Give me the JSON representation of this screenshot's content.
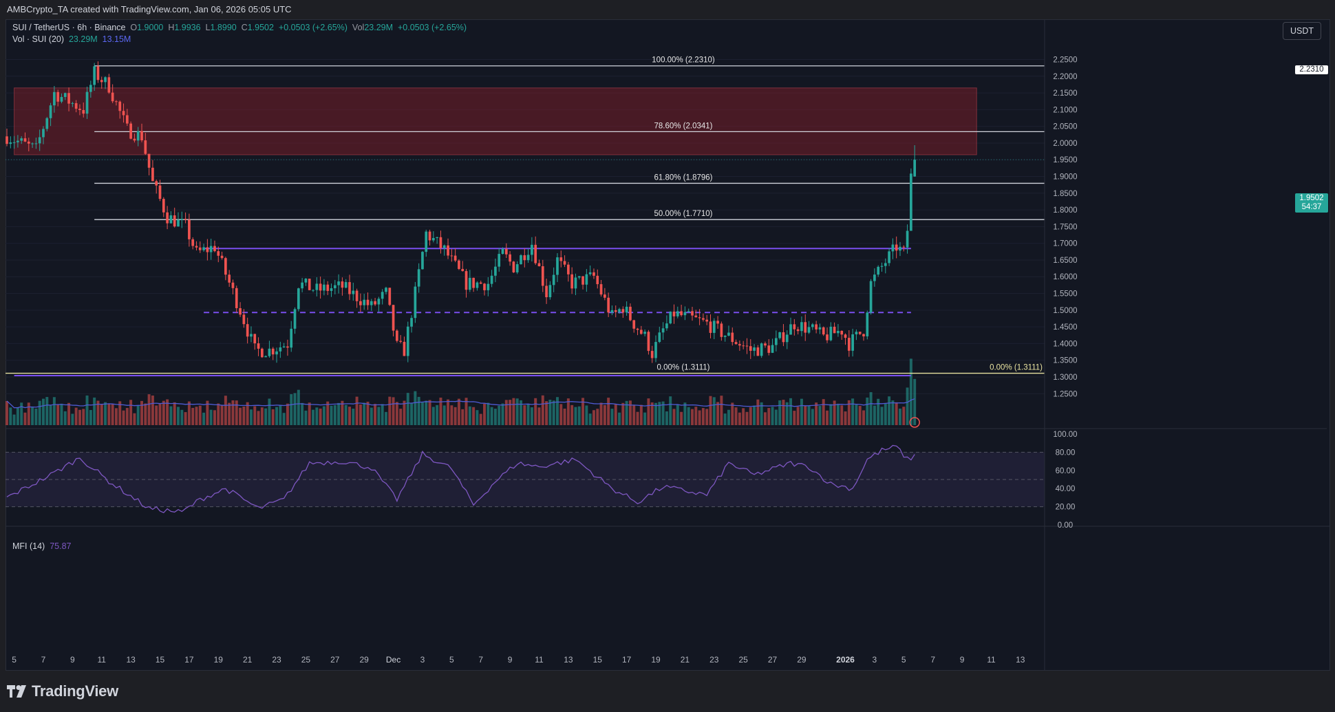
{
  "header": {
    "attribution": "AMBCrypto_TA created with TradingView.com, Jan 06, 2026 05:05 UTC"
  },
  "legend": {
    "symbol": "SUI / TetherUS · 6h · Binance",
    "o_label": "O",
    "o": "1.9000",
    "h_label": "H",
    "h": "1.9936",
    "l_label": "L",
    "l": "1.8990",
    "c_label": "C",
    "c": "1.9502",
    "change": "+0.0503 (+2.65%)",
    "vol_label": "Vol",
    "vol": "23.29M",
    "vol_change": "+0.0503 (+2.65%)",
    "vol_indicator": "Vol · SUI (20)",
    "vol_value": "23.29M",
    "vol_ma_value": "13.15M",
    "mfi_indicator": "MFI (14)",
    "mfi_value": "75.87"
  },
  "currency_button": "USDT",
  "last_price": {
    "price": "1.9502",
    "countdown": "54:37"
  },
  "brand": "TradingView",
  "colors": {
    "up": "#26a69a",
    "down": "#ef5350",
    "zone": "#8a1f2b",
    "level_line": "#d1d4dc",
    "range_line": "#7b4ff0",
    "base_line": "#e9e3a0",
    "vol_ma": "#4f5bd5",
    "mfi": "#7e57c2",
    "background": "#131722"
  },
  "chart_data": [
    {
      "type": "candlestick",
      "title": "SUI / TetherUS · 6h · Binance",
      "y_axis": {
        "ylim": [
          1.197,
          2.284
        ],
        "ticks": [
          "2.2500",
          "2.2000",
          "2.1500",
          "2.1000",
          "2.0500",
          "2.0000",
          "1.9500",
          "1.9000",
          "1.8500",
          "1.8000",
          "1.7500",
          "1.7000",
          "1.6500",
          "1.6000",
          "1.5500",
          "1.5000",
          "1.4500",
          "1.4000",
          "1.3500",
          "1.3000",
          "1.2500"
        ]
      },
      "x_axis": {
        "range": [
          "2025-11-04T12:00",
          "2026-01-14"
        ],
        "ticks": [
          {
            "date": "2025-11-05",
            "label": "5"
          },
          {
            "date": "2025-11-07",
            "label": "7"
          },
          {
            "date": "2025-11-09",
            "label": "9"
          },
          {
            "date": "2025-11-11",
            "label": "11"
          },
          {
            "date": "2025-11-13",
            "label": "13"
          },
          {
            "date": "2025-11-15",
            "label": "15"
          },
          {
            "date": "2025-11-17",
            "label": "17"
          },
          {
            "date": "2025-11-19",
            "label": "19"
          },
          {
            "date": "2025-11-21",
            "label": "21"
          },
          {
            "date": "2025-11-23",
            "label": "23"
          },
          {
            "date": "2025-11-25",
            "label": "25"
          },
          {
            "date": "2025-11-27",
            "label": "27"
          },
          {
            "date": "2025-11-29",
            "label": "29"
          },
          {
            "date": "2025-12-01",
            "label": "Dec"
          },
          {
            "date": "2025-12-03",
            "label": "3"
          },
          {
            "date": "2025-12-05",
            "label": "5"
          },
          {
            "date": "2025-12-07",
            "label": "7"
          },
          {
            "date": "2025-12-09",
            "label": "9"
          },
          {
            "date": "2025-12-11",
            "label": "11"
          },
          {
            "date": "2025-12-13",
            "label": "13"
          },
          {
            "date": "2025-12-15",
            "label": "15"
          },
          {
            "date": "2025-12-17",
            "label": "17"
          },
          {
            "date": "2025-12-19",
            "label": "19"
          },
          {
            "date": "2025-12-21",
            "label": "21"
          },
          {
            "date": "2025-12-23",
            "label": "23"
          },
          {
            "date": "2025-12-25",
            "label": "25"
          },
          {
            "date": "2025-12-27",
            "label": "27"
          },
          {
            "date": "2025-12-29",
            "label": "29"
          },
          {
            "date": "2026-01-01",
            "label": "2026"
          },
          {
            "date": "2026-01-03",
            "label": "3"
          },
          {
            "date": "2026-01-05",
            "label": "5"
          },
          {
            "date": "2026-01-07",
            "label": "7"
          },
          {
            "date": "2026-01-09",
            "label": "9"
          },
          {
            "date": "2026-01-11",
            "label": "11"
          },
          {
            "date": "2026-01-13",
            "label": "13"
          }
        ]
      },
      "key_points": [
        {
          "date": "2025-11-04T12:00",
          "close": 2.02
        },
        {
          "date": "2025-11-06T12:00",
          "close": 1.98
        },
        {
          "date": "2025-11-07T18:00",
          "close": 2.15
        },
        {
          "date": "2025-11-09T18:00",
          "close": 2.1
        },
        {
          "date": "2025-11-10T12:00",
          "close": 2.21
        },
        {
          "date": "2025-11-11T12:00",
          "close": 2.17
        },
        {
          "date": "2025-11-12T18:00",
          "close": 2.04
        },
        {
          "date": "2025-11-13T18:00",
          "close": 2.02
        },
        {
          "date": "2025-11-14T12:00",
          "close": 1.88
        },
        {
          "date": "2025-11-15T12:00",
          "close": 1.78
        },
        {
          "date": "2025-11-16T18:00",
          "close": 1.75
        },
        {
          "date": "2025-11-17T12:00",
          "close": 1.67
        },
        {
          "date": "2025-11-18T18:00",
          "close": 1.69
        },
        {
          "date": "2025-11-20T12:00",
          "close": 1.5
        },
        {
          "date": "2025-11-21T12:00",
          "close": 1.38
        },
        {
          "date": "2025-11-22T12:00",
          "close": 1.38
        },
        {
          "date": "2025-11-23T18:00",
          "close": 1.4
        },
        {
          "date": "2025-11-24T12:00",
          "close": 1.58
        },
        {
          "date": "2025-11-25T18:00",
          "close": 1.56
        },
        {
          "date": "2025-11-27T12:00",
          "close": 1.57
        },
        {
          "date": "2025-11-29T12:00",
          "close": 1.51
        },
        {
          "date": "2025-11-30T12:00",
          "close": 1.55
        },
        {
          "date": "2025-12-01T06:00",
          "close": 1.39
        },
        {
          "date": "2025-12-01T18:00",
          "close": 1.38
        },
        {
          "date": "2025-12-02T12:00",
          "close": 1.55
        },
        {
          "date": "2025-12-03T06:00",
          "close": 1.73
        },
        {
          "date": "2025-12-04T12:00",
          "close": 1.68
        },
        {
          "date": "2025-12-06T00:00",
          "close": 1.58
        },
        {
          "date": "2025-12-07T12:00",
          "close": 1.58
        },
        {
          "date": "2025-12-08T12:00",
          "close": 1.67
        },
        {
          "date": "2025-12-09T06:00",
          "close": 1.63
        },
        {
          "date": "2025-12-10T12:00",
          "close": 1.7
        },
        {
          "date": "2025-12-11T12:00",
          "close": 1.55
        },
        {
          "date": "2025-12-12T06:00",
          "close": 1.65
        },
        {
          "date": "2025-12-13T06:00",
          "close": 1.58
        },
        {
          "date": "2025-12-14T18:00",
          "close": 1.6
        },
        {
          "date": "2025-12-16T00:00",
          "close": 1.48
        },
        {
          "date": "2025-12-16T18:00",
          "close": 1.51
        },
        {
          "date": "2025-12-17T12:00",
          "close": 1.46
        },
        {
          "date": "2025-12-18T06:00",
          "close": 1.42
        },
        {
          "date": "2025-12-18T18:00",
          "close": 1.37
        },
        {
          "date": "2025-12-19T12:00",
          "close": 1.44
        },
        {
          "date": "2025-12-20T06:00",
          "close": 1.49
        },
        {
          "date": "2025-12-22T12:00",
          "close": 1.46
        },
        {
          "date": "2025-12-24T00:00",
          "close": 1.42
        },
        {
          "date": "2025-12-25T12:00",
          "close": 1.38
        },
        {
          "date": "2025-12-27T00:00",
          "close": 1.39
        },
        {
          "date": "2025-12-28T12:00",
          "close": 1.46
        },
        {
          "date": "2025-12-29T18:00",
          "close": 1.44
        },
        {
          "date": "2025-12-30T12:00",
          "close": 1.42
        },
        {
          "date": "2025-12-31T18:00",
          "close": 1.44
        },
        {
          "date": "2026-01-01T06:00",
          "close": 1.4
        },
        {
          "date": "2026-01-02T06:00",
          "close": 1.44
        },
        {
          "date": "2026-01-02T18:00",
          "close": 1.58
        },
        {
          "date": "2026-01-03T12:00",
          "close": 1.63
        },
        {
          "date": "2026-01-04T12:00",
          "close": 1.69
        },
        {
          "date": "2026-01-05T00:00",
          "close": 1.67
        },
        {
          "date": "2026-01-05T06:00",
          "close": 1.74
        },
        {
          "date": "2026-01-05T12:00",
          "close": 1.9
        },
        {
          "date": "2026-01-05T18:00",
          "close": 1.9502
        }
      ],
      "last_candle": {
        "open": 1.9,
        "high": 1.9936,
        "low": 1.899,
        "close": 1.9502
      },
      "fib_levels": [
        {
          "label": "100.00% (2.2310)",
          "price": 2.231
        },
        {
          "label": "78.60% (2.0341)",
          "price": 2.0341
        },
        {
          "label": "61.80% (1.8796)",
          "price": 1.8796
        },
        {
          "label": "50.00% (1.7710)",
          "price": 1.771
        },
        {
          "label": "0.00% (1.3111)",
          "price": 1.3111
        }
      ],
      "fib_right_label": "0.00% (1.3111)",
      "price_tags": [
        "2.2310"
      ],
      "supply_zone": {
        "top": 2.165,
        "bottom": 1.965,
        "from": "2025-11-05T00:00",
        "to": "2026-01-10"
      },
      "range_high": {
        "price": 1.6845,
        "from": "2025-11-18",
        "to": "2026-01-05T12:00"
      },
      "range_mid": {
        "price": 1.493,
        "from": "2025-11-18",
        "to": "2026-01-05T12:00",
        "style": "dashed"
      },
      "range_low": {
        "price": 1.304,
        "from": "2025-11-05",
        "to": "2026-01-05T12:00"
      }
    },
    {
      "type": "bar",
      "title": "Vol · SUI (20)",
      "last_volume": "23.29M",
      "ma20": "13.15M"
    },
    {
      "type": "line",
      "title": "MFI (14)",
      "last_value": 75.87,
      "ylim": [
        0,
        100
      ],
      "ticks": [
        "100.00",
        "80.00",
        "60.00",
        "40.00",
        "20.00",
        "0.00"
      ],
      "bands": [
        20,
        50,
        80
      ],
      "key_points": [
        {
          "date": "2025-11-04T12:00",
          "value": 30
        },
        {
          "date": "2025-11-07T12:00",
          "value": 55
        },
        {
          "date": "2025-11-09T12:00",
          "value": 74
        },
        {
          "date": "2025-11-11T12:00",
          "value": 48
        },
        {
          "date": "2025-11-14T06:00",
          "value": 18
        },
        {
          "date": "2025-11-16T12:00",
          "value": 14
        },
        {
          "date": "2025-11-17T18:00",
          "value": 28
        },
        {
          "date": "2025-11-19T12:00",
          "value": 40
        },
        {
          "date": "2025-11-21T18:00",
          "value": 18
        },
        {
          "date": "2025-11-23T12:00",
          "value": 28
        },
        {
          "date": "2025-11-25T06:00",
          "value": 68
        },
        {
          "date": "2025-11-27T12:00",
          "value": 70
        },
        {
          "date": "2025-11-29T12:00",
          "value": 63
        },
        {
          "date": "2025-12-01T06:00",
          "value": 28
        },
        {
          "date": "2025-12-03T00:00",
          "value": 78
        },
        {
          "date": "2025-12-05T00:00",
          "value": 62
        },
        {
          "date": "2025-12-06T12:00",
          "value": 22
        },
        {
          "date": "2025-12-08T00:00",
          "value": 48
        },
        {
          "date": "2025-12-09T12:00",
          "value": 68
        },
        {
          "date": "2025-12-11T00:00",
          "value": 64
        },
        {
          "date": "2025-12-13T12:00",
          "value": 72
        },
        {
          "date": "2025-12-16T00:00",
          "value": 40
        },
        {
          "date": "2025-12-17T18:00",
          "value": 25
        },
        {
          "date": "2025-12-19T12:00",
          "value": 42
        },
        {
          "date": "2025-12-22T12:00",
          "value": 33
        },
        {
          "date": "2025-12-24T00:00",
          "value": 68
        },
        {
          "date": "2025-12-25T18:00",
          "value": 55
        },
        {
          "date": "2025-12-28T06:00",
          "value": 68
        },
        {
          "date": "2025-12-29T12:00",
          "value": 64
        },
        {
          "date": "2025-12-31T00:00",
          "value": 45
        },
        {
          "date": "2026-01-01T12:00",
          "value": 40
        },
        {
          "date": "2026-01-02T12:00",
          "value": 72
        },
        {
          "date": "2026-01-03T12:00",
          "value": 82
        },
        {
          "date": "2026-01-04T12:00",
          "value": 86
        },
        {
          "date": "2026-01-05T06:00",
          "value": 72
        },
        {
          "date": "2026-01-05T18:00",
          "value": 75.87
        }
      ]
    }
  ]
}
